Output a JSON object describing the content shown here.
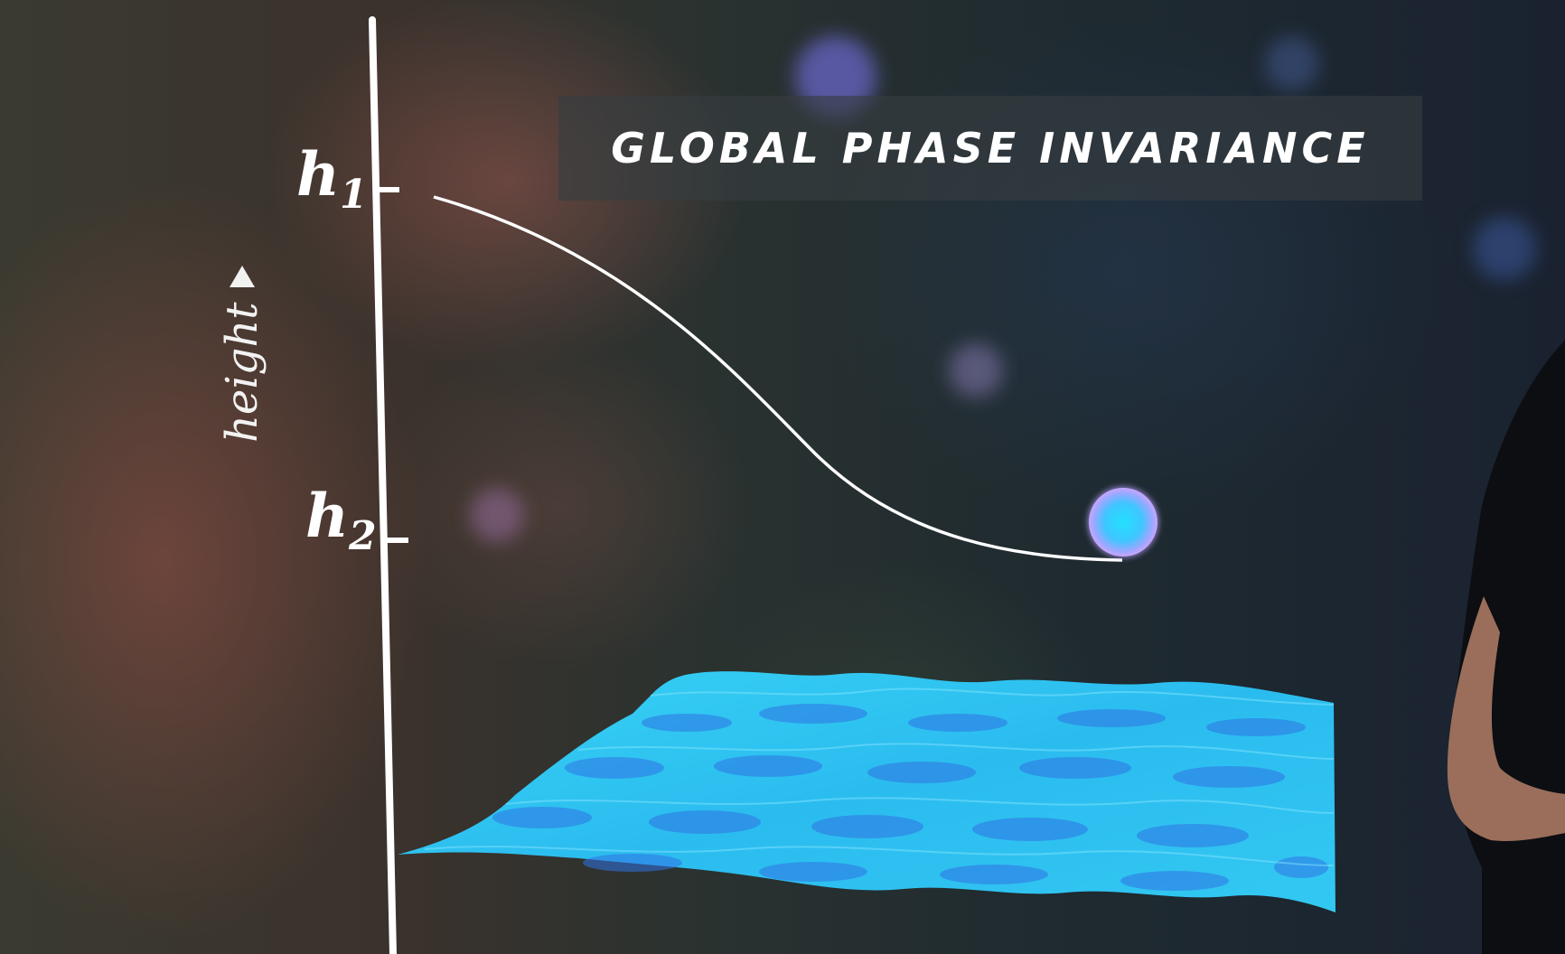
{
  "title": "GLOBAL PHASE INVARIANCE",
  "axis": {
    "title": "height",
    "ticks": [
      {
        "symbol": "h",
        "subscript": "1"
      },
      {
        "symbol": "h",
        "subscript": "2"
      }
    ]
  },
  "colors": {
    "curve": "#ffffff",
    "ball_core": "#22d8ff",
    "ball_rim": "#b49cff",
    "surface": "#2ec6f0",
    "surface_dark": "#2f78e6"
  }
}
